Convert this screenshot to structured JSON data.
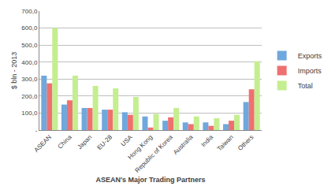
{
  "chart_data": {
    "type": "bar",
    "x_label": "ASEAN's Major Trading Partners",
    "y_label": "$ bln - 2013",
    "categories": [
      "ASEAN",
      "China",
      "Japan",
      "EU-28",
      "USA",
      "Hong Kong",
      "Republic of Korea",
      "Australia",
      "India",
      "Taiwan",
      "Others"
    ],
    "series": [
      {
        "name": "Exports",
        "color": "#6fa8dc",
        "values": [
          320,
          150,
          130,
          120,
          105,
          80,
          55,
          45,
          45,
          35,
          165
        ]
      },
      {
        "name": "Imports",
        "color": "#ef7070",
        "values": [
          275,
          175,
          130,
          120,
          90,
          15,
          75,
          35,
          25,
          55,
          240
        ]
      },
      {
        "name": "Total",
        "color": "#c4ee8f",
        "values": [
          600,
          320,
          260,
          245,
          195,
          95,
          130,
          80,
          70,
          90,
          405
        ]
      }
    ],
    "ylim": [
      0,
      700
    ],
    "yticks": [
      {
        "value": 0,
        "label": "-"
      },
      {
        "value": 100,
        "label": "100,0"
      },
      {
        "value": 200,
        "label": "200,0"
      },
      {
        "value": 300,
        "label": "300,0"
      },
      {
        "value": 400,
        "label": "400,0"
      },
      {
        "value": 500,
        "label": "500,0"
      },
      {
        "value": 600,
        "label": "600,0"
      },
      {
        "value": 700,
        "label": "700,0"
      }
    ],
    "grid": true,
    "legend": "right"
  }
}
